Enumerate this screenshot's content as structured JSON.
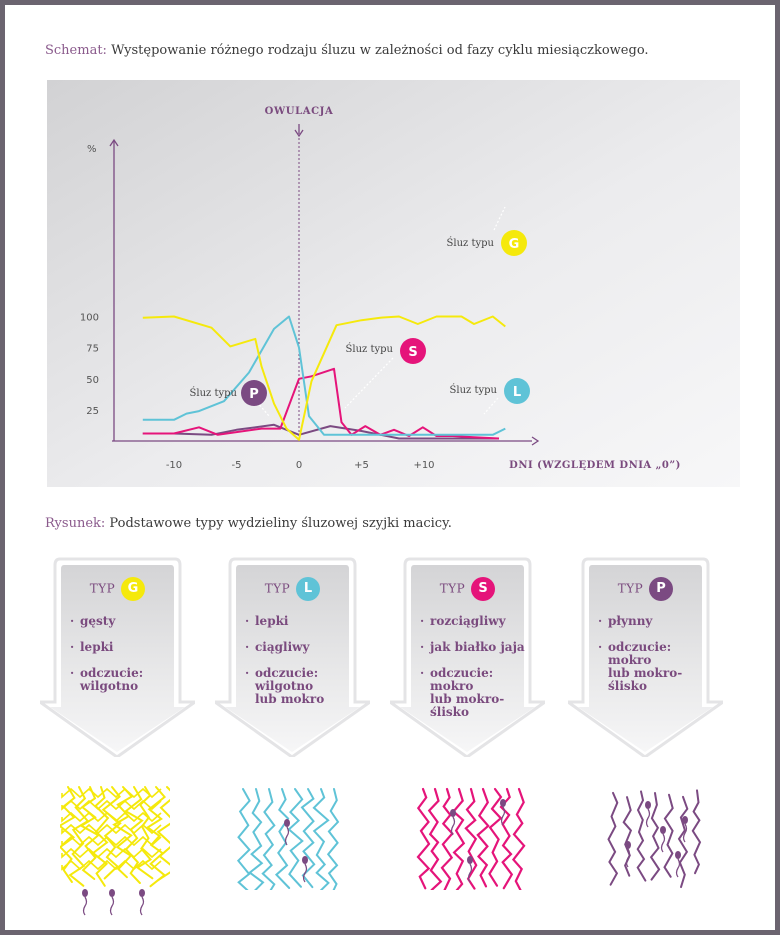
{
  "schemat": {
    "lead": "Schemat:",
    "text": " Występowanie różnego rodzaju śluzu w zależności od fazy cyklu miesiączkowego."
  },
  "rysunek": {
    "lead": "Rysunek:",
    "text": " Podstawowe typy wydzieliny śluzowej szyjki macicy."
  },
  "colors": {
    "G": "#f5e90c",
    "L": "#5fc3d7",
    "S": "#e5147a",
    "P": "#7b4a82",
    "panel": "#d6d6d8",
    "axis": "#7b4a82",
    "text": "#7a4a7e"
  },
  "chart_data": {
    "type": "line",
    "ylabel": "%",
    "xlabel": "DNI (WZGLĘDEM DNIA „0”)",
    "xlim": [
      -14,
      22
    ],
    "ylim": [
      0,
      110
    ],
    "yticks": [
      25,
      50,
      75,
      100
    ],
    "xticks": [
      -10,
      -5,
      0,
      5,
      10
    ],
    "xtick_labels": [
      "-10",
      "-5",
      "0",
      "+5",
      "+10"
    ],
    "annotation": "OWULACJA",
    "annotation_x": 0,
    "series": [
      {
        "name": "Śluz typu G",
        "badge": "G",
        "color": "#f5e90c",
        "x": [
          -12.5,
          -10,
          -7,
          -5.5,
          -3.5,
          -3,
          -2,
          -1,
          0,
          1,
          3,
          5,
          6.5,
          8,
          9.5,
          11,
          13,
          14,
          15.5,
          16.5
        ],
        "y": [
          99,
          100,
          91,
          76,
          82,
          60,
          30,
          10,
          1,
          48,
          93,
          97,
          99,
          100,
          94,
          100,
          100,
          94,
          100,
          92
        ]
      },
      {
        "name": "Śluz typu L",
        "badge": "L",
        "color": "#5fc3d7",
        "x": [
          -12.5,
          -10,
          -9,
          -8,
          -6,
          -4,
          -2,
          -0.8,
          0,
          0.8,
          2,
          6,
          11,
          14,
          15.5,
          16.5
        ],
        "y": [
          17,
          17,
          22,
          24,
          32,
          55,
          90,
          100,
          75,
          20,
          5,
          5,
          5,
          5,
          5,
          10
        ]
      },
      {
        "name": "Śluz typu S",
        "badge": "S",
        "color": "#e5147a",
        "x": [
          -12.5,
          -10,
          -8,
          -6.5,
          -3,
          -1.5,
          0,
          1,
          2.8,
          3.4,
          4.2,
          5.3,
          6.5,
          7.6,
          8.8,
          9.9,
          11,
          12.3,
          14,
          16
        ],
        "y": [
          6,
          6,
          11,
          5,
          10,
          10,
          50,
          52,
          58,
          15,
          5,
          12,
          5,
          9,
          4,
          11,
          4,
          4,
          3,
          2
        ]
      },
      {
        "name": "Śluz typu P",
        "badge": "P",
        "color": "#7b4a82",
        "x": [
          -12.5,
          -10,
          -7,
          -5,
          -2,
          0,
          2.5,
          5,
          8,
          11,
          14,
          16
        ],
        "y": [
          6,
          6,
          5,
          9,
          13,
          5,
          12,
          8,
          2,
          2,
          2,
          2
        ]
      }
    ],
    "series_labels": [
      {
        "badge": "G",
        "prefix": "Śluz typu"
      },
      {
        "badge": "S",
        "prefix": "Śluz typu"
      },
      {
        "badge": "L",
        "prefix": "Śluz typu"
      },
      {
        "badge": "P",
        "prefix": "Śluz typu"
      }
    ],
    "grid": false,
    "legend": "none"
  },
  "cards": [
    {
      "typ": "TYP",
      "badge": "G",
      "color": "#f5e90c",
      "items": [
        "gęsty",
        "lepki",
        "odczucie:\nwilgotno"
      ]
    },
    {
      "typ": "TYP",
      "badge": "L",
      "color": "#5fc3d7",
      "items": [
        "lepki",
        "ciągliwy",
        "odczucie:\nwilgotno\nlub mokro"
      ]
    },
    {
      "typ": "TYP",
      "badge": "S",
      "color": "#e5147a",
      "items": [
        "rozciągliwy",
        "jak białko jaja",
        "odczucie:\nmokro\nlub mokro-\nślisko"
      ]
    },
    {
      "typ": "TYP",
      "badge": "P",
      "color": "#7b4a82",
      "items": [
        "płynny",
        "odczucie:\nmokro\nlub mokro-\nślisko"
      ]
    }
  ],
  "illustrations": [
    {
      "name": "mucus-illustration-g",
      "kind": "mesh",
      "color": "#f5e90c"
    },
    {
      "name": "mucus-illustration-l",
      "kind": "branch",
      "color": "#5fc3d7"
    },
    {
      "name": "mucus-illustration-s",
      "kind": "strand",
      "color": "#e5147a"
    },
    {
      "name": "mucus-illustration-p",
      "kind": "sparse",
      "color": "#7b4a82"
    }
  ]
}
